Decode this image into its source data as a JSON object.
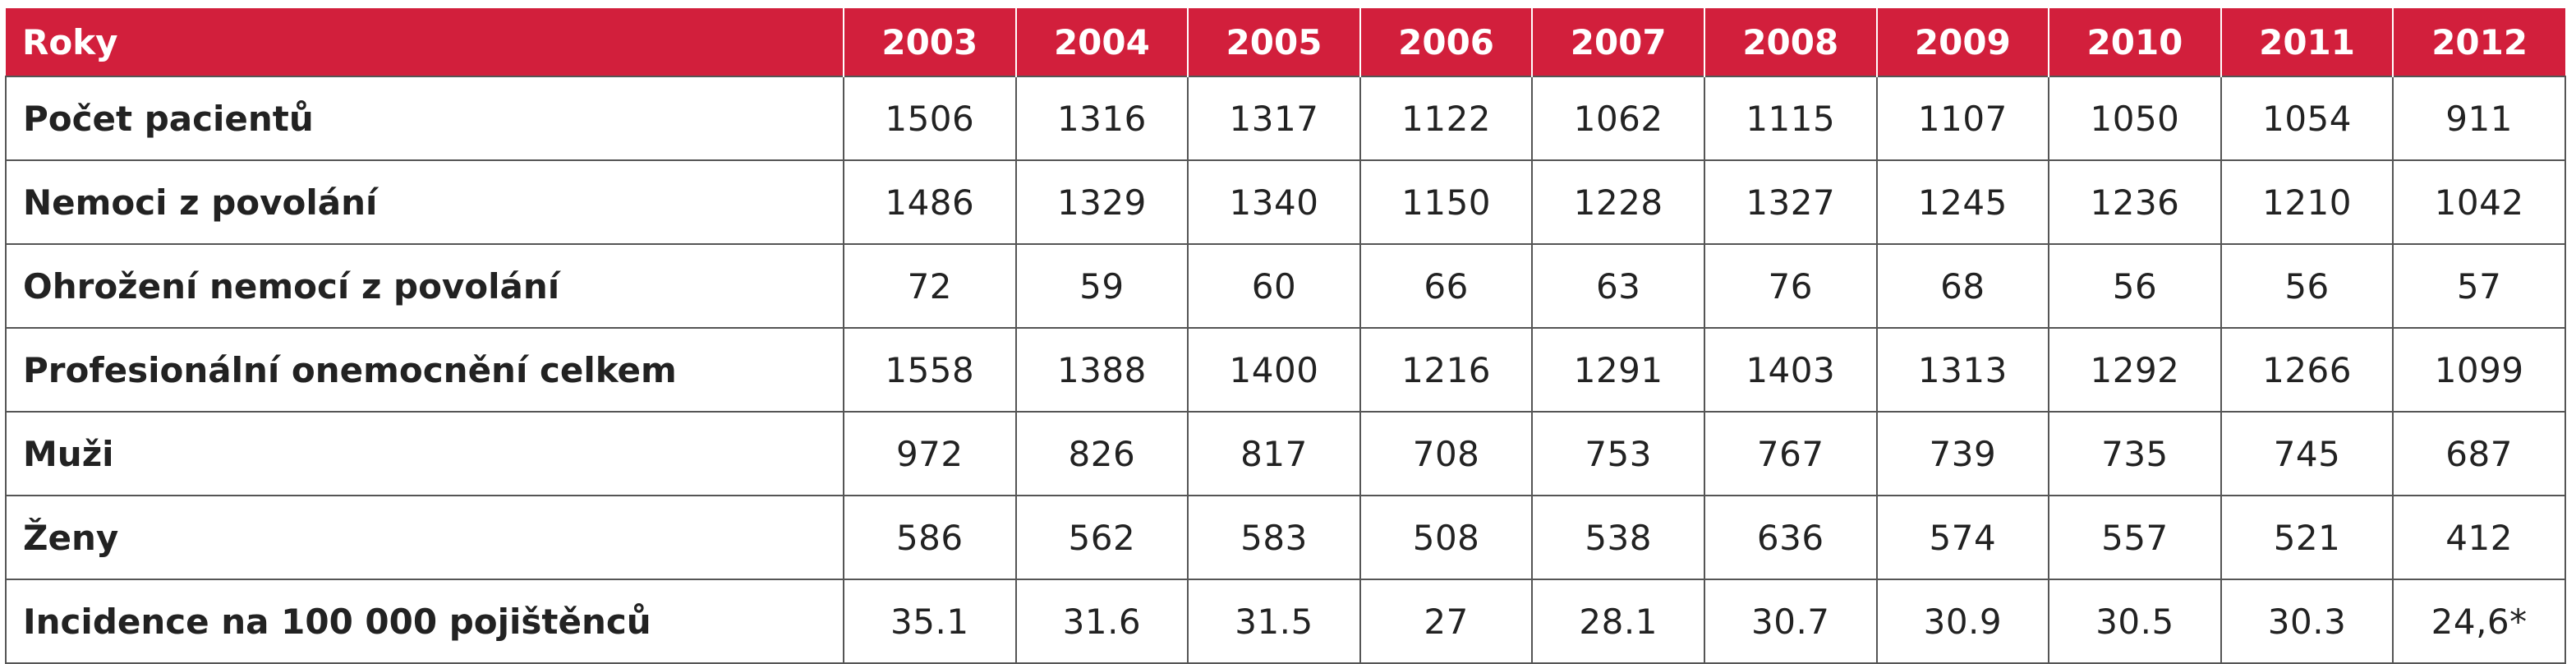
{
  "header": {
    "label": "Roky",
    "years": [
      "2003",
      "2004",
      "2005",
      "2006",
      "2007",
      "2008",
      "2009",
      "2010",
      "2011",
      "2012"
    ]
  },
  "rows": [
    {
      "label": "Počet pacientů",
      "values": [
        "1506",
        "1316",
        "1317",
        "1122",
        "1062",
        "1115",
        "1107",
        "1050",
        "1054",
        "911"
      ]
    },
    {
      "label": "Nemoci z povolání",
      "values": [
        "1486",
        "1329",
        "1340",
        "1150",
        "1228",
        "1327",
        "1245",
        "1236",
        "1210",
        "1042"
      ]
    },
    {
      "label": "Ohrožení nemocí z povolání",
      "values": [
        "72",
        "59",
        "60",
        "66",
        "63",
        "76",
        "68",
        "56",
        "56",
        "57"
      ]
    },
    {
      "label": "Profesionální onemocnění celkem",
      "values": [
        "1558",
        "1388",
        "1400",
        "1216",
        "1291",
        "1403",
        "1313",
        "1292",
        "1266",
        "1099"
      ]
    },
    {
      "label": "Muži",
      "values": [
        "972",
        "826",
        "817",
        "708",
        "753",
        "767",
        "739",
        "735",
        "745",
        "687"
      ]
    },
    {
      "label": "Ženy",
      "values": [
        "586",
        "562",
        "583",
        "508",
        "538",
        "636",
        "574",
        "557",
        "521",
        "412"
      ]
    },
    {
      "label": "Incidence na 100 000 pojištěnců",
      "values": [
        "35.1",
        "31.6",
        "31.5",
        "27",
        "28.1",
        "30.7",
        "30.9",
        "30.5",
        "30.3",
        "24,6*"
      ]
    }
  ],
  "colors": {
    "header_bg": "#d21f3c",
    "header_text": "#ffffff",
    "border": "#555555"
  }
}
